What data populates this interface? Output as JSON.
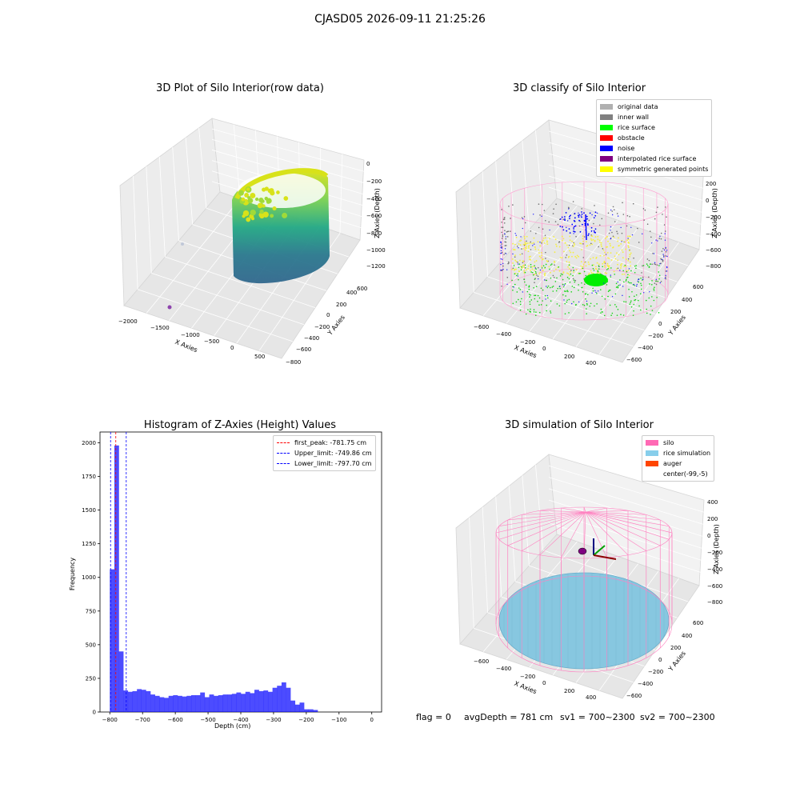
{
  "suptitle": "CJASD05 2026-09-11 21:25:26",
  "panels": {
    "raw": {
      "title": "3D Plot of Silo Interior(row data)",
      "xlabel": "X Axies",
      "ylabel": "Y Axies",
      "zlabel": "Z Axies (Depth)",
      "xticks": [
        "−2000",
        "−1500",
        "−1000",
        "−500",
        "0",
        "500"
      ],
      "yticks": [
        "−800",
        "−600",
        "−400",
        "−200",
        "0",
        "200",
        "400",
        "600"
      ],
      "zticks": [
        "0",
        "−200",
        "−400",
        "−600",
        "−800",
        "−1000",
        "−1200"
      ]
    },
    "classify": {
      "title": "3D classify of Silo Interior",
      "xlabel": "X Axies",
      "ylabel": "Y Axies",
      "zlabel": "Z Axies (Depth)",
      "xticks": [
        "−600",
        "−400",
        "−200",
        "0",
        "200",
        "400"
      ],
      "yticks": [
        "−600",
        "−400",
        "−200",
        "0",
        "200",
        "400",
        "600"
      ],
      "zticks": [
        "200",
        "0",
        "−200",
        "−400",
        "−600",
        "−800"
      ],
      "legend": [
        {
          "label": "original data",
          "color": "#b0b0b0"
        },
        {
          "label": "inner wall",
          "color": "#808080"
        },
        {
          "label": "rice surface",
          "color": "#00ff00"
        },
        {
          "label": "obstacle",
          "color": "#ff0000"
        },
        {
          "label": "noise",
          "color": "#0000ff"
        },
        {
          "label": "interpolated rice surface",
          "color": "#800080"
        },
        {
          "label": "symmetric generated points",
          "color": "#ffff00"
        }
      ]
    },
    "sim": {
      "title": "3D simulation of Silo Interior",
      "xlabel": "X Axies",
      "ylabel": "Y Axies",
      "zlabel": "Z Axies (Depth)",
      "xticks": [
        "−600",
        "−400",
        "−200",
        "0",
        "200",
        "400"
      ],
      "yticks": [
        "−600",
        "−400",
        "−200",
        "0",
        "200",
        "400",
        "600"
      ],
      "zticks": [
        "400",
        "200",
        "0",
        "−200",
        "−400",
        "−600",
        "−800"
      ],
      "legend": [
        {
          "label": "silo",
          "color": "#ff69b4"
        },
        {
          "label": "rice simulation",
          "color": "#87ceeb"
        },
        {
          "label": "auger",
          "color": "#ff4500"
        },
        {
          "label": "center(-99,-5)",
          "color": "#ffffff"
        }
      ]
    }
  },
  "chart_data": {
    "type": "bar",
    "title": "Histogram of Z-Axies (Height) Values",
    "xlabel": "Depth (cm)",
    "ylabel": "Frequency",
    "xlim": [
      -830,
      30
    ],
    "ylim": [
      0,
      2080
    ],
    "xticks": [
      -800,
      -700,
      -600,
      -500,
      -400,
      -300,
      -200,
      -100,
      0
    ],
    "yticks": [
      0,
      250,
      500,
      750,
      1000,
      1250,
      1500,
      1750,
      2000
    ],
    "bar_color": "#0000ff",
    "bins_start": -800,
    "bin_width": 13.8,
    "values": [
      1060,
      1980,
      450,
      160,
      150,
      155,
      170,
      165,
      155,
      130,
      120,
      110,
      105,
      120,
      125,
      120,
      115,
      120,
      125,
      125,
      145,
      110,
      130,
      120,
      125,
      130,
      130,
      135,
      145,
      135,
      150,
      140,
      165,
      155,
      160,
      150,
      180,
      195,
      220,
      180,
      85,
      55,
      70,
      20,
      20,
      15
    ],
    "lines": [
      {
        "label": "first_peak: -781.75 cm",
        "value": -781.75,
        "color": "#ff0000"
      },
      {
        "label": "Upper_limit: -749.86 cm",
        "value": -749.86,
        "color": "#0000ff"
      },
      {
        "label": "Lower_limit: -797.70 cm",
        "value": -797.7,
        "color": "#0000ff"
      }
    ]
  },
  "footer": {
    "flag": "flag = 0",
    "avg": "avgDepth = 781 cm",
    "sv1": "sv1 = 700~2300",
    "sv2": "sv2 = 700~2300"
  }
}
